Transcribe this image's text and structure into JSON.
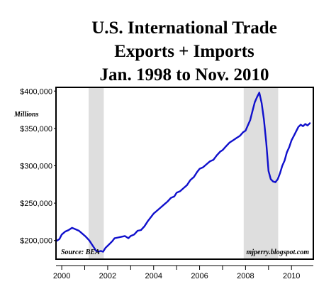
{
  "chart_data": {
    "type": "line",
    "title_lines": [
      "U.S. International Trade",
      "Exports + Imports",
      "Jan. 1998 to Nov. 2010"
    ],
    "ylabel": "Millions",
    "source_note": "Source: BEA",
    "credit": "mjperry.blogspot.com",
    "xlim": [
      1999.75,
      2010.95
    ],
    "ylim": [
      175000,
      405000
    ],
    "x_ticks": [
      2000,
      2001,
      2002,
      2003,
      2004,
      2005,
      2006,
      2007,
      2008,
      2009,
      2010
    ],
    "x_tick_labels": [
      {
        "value": 2000,
        "label": "2000"
      },
      {
        "value": 2002,
        "label": "2002"
      },
      {
        "value": 2004,
        "label": "2004"
      },
      {
        "value": 2006,
        "label": "2006"
      },
      {
        "value": 2008,
        "label": "2008"
      },
      {
        "value": 2010,
        "label": "2010"
      }
    ],
    "y_ticks": [
      {
        "value": 200000,
        "label": "$200,000"
      },
      {
        "value": 250000,
        "label": "$250,000"
      },
      {
        "value": 300000,
        "label": "$300,000"
      },
      {
        "value": 350000,
        "label": "$350,000"
      },
      {
        "value": 400000,
        "label": "$400,000"
      }
    ],
    "recessions": [
      {
        "start": 2001.17,
        "end": 2001.83
      },
      {
        "start": 2007.92,
        "end": 2009.42
      }
    ],
    "series": [
      {
        "color": "#1010cc",
        "x": [
          1999.75,
          1999.9,
          2000.0,
          2000.15,
          2000.3,
          2000.45,
          2000.6,
          2000.75,
          2000.9,
          2001.05,
          2001.2,
          2001.35,
          2001.5,
          2001.6,
          2001.7,
          2001.8,
          2001.9,
          2002.0,
          2002.1,
          2002.2,
          2002.3,
          2002.45,
          2002.6,
          2002.75,
          2002.9,
          2003.0,
          2003.15,
          2003.3,
          2003.45,
          2003.6,
          2003.75,
          2003.9,
          2004.0,
          2004.15,
          2004.3,
          2004.45,
          2004.6,
          2004.75,
          2004.9,
          2005.0,
          2005.15,
          2005.3,
          2005.45,
          2005.6,
          2005.75,
          2005.9,
          2006.0,
          2006.15,
          2006.3,
          2006.45,
          2006.6,
          2006.75,
          2006.9,
          2007.0,
          2007.15,
          2007.3,
          2007.45,
          2007.6,
          2007.75,
          2007.9,
          2008.0,
          2008.1,
          2008.2,
          2008.3,
          2008.4,
          2008.5,
          2008.6,
          2008.7,
          2008.8,
          2008.9,
          2009.0,
          2009.1,
          2009.2,
          2009.3,
          2009.4,
          2009.5,
          2009.6,
          2009.7,
          2009.8,
          2009.9,
          2010.0,
          2010.1,
          2010.2,
          2010.3,
          2010.4,
          2010.5,
          2010.6,
          2010.7,
          2010.8
        ],
        "y": [
          199000,
          202000,
          208000,
          212000,
          214000,
          217000,
          215000,
          213000,
          209000,
          205000,
          200000,
          193000,
          186000,
          185000,
          186000,
          185000,
          190000,
          193000,
          196000,
          199000,
          203000,
          204000,
          205000,
          206000,
          203000,
          206000,
          208000,
          213000,
          214000,
          219000,
          226000,
          232000,
          236000,
          240000,
          244000,
          248000,
          252000,
          257000,
          259000,
          264000,
          266000,
          270000,
          274000,
          281000,
          285000,
          292000,
          296000,
          298000,
          302000,
          306000,
          308000,
          314000,
          319000,
          321000,
          326000,
          331000,
          334000,
          337000,
          340000,
          345000,
          347000,
          354000,
          361000,
          373000,
          385000,
          392000,
          398000,
          384000,
          362000,
          331000,
          293000,
          282000,
          279000,
          278000,
          282000,
          290000,
          300000,
          307000,
          318000,
          325000,
          334000,
          340000,
          346000,
          352000,
          355000,
          353000,
          356000,
          354000,
          357000
        ]
      }
    ],
    "grid": false,
    "legend": "none"
  }
}
